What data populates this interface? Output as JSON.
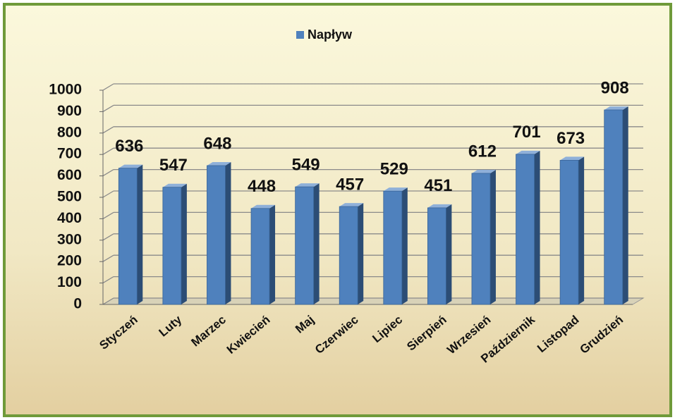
{
  "chart_data": {
    "type": "bar",
    "categories": [
      "Styczeń",
      "Luty",
      "Marzec",
      "Kwiecień",
      "Maj",
      "Czerwiec",
      "Lipiec",
      "Sierpień",
      "Wrzesień",
      "Październik",
      "Listopad",
      "Grudzień"
    ],
    "series": [
      {
        "name": "Napływ",
        "color": "#4f81bd",
        "values": [
          636,
          547,
          648,
          448,
          549,
          457,
          529,
          451,
          612,
          701,
          673,
          908
        ]
      }
    ],
    "ylim": [
      0,
      1000
    ],
    "yticks": [
      0,
      100,
      200,
      300,
      400,
      500,
      600,
      700,
      800,
      900,
      1000
    ],
    "grid": true,
    "legend": "top"
  }
}
